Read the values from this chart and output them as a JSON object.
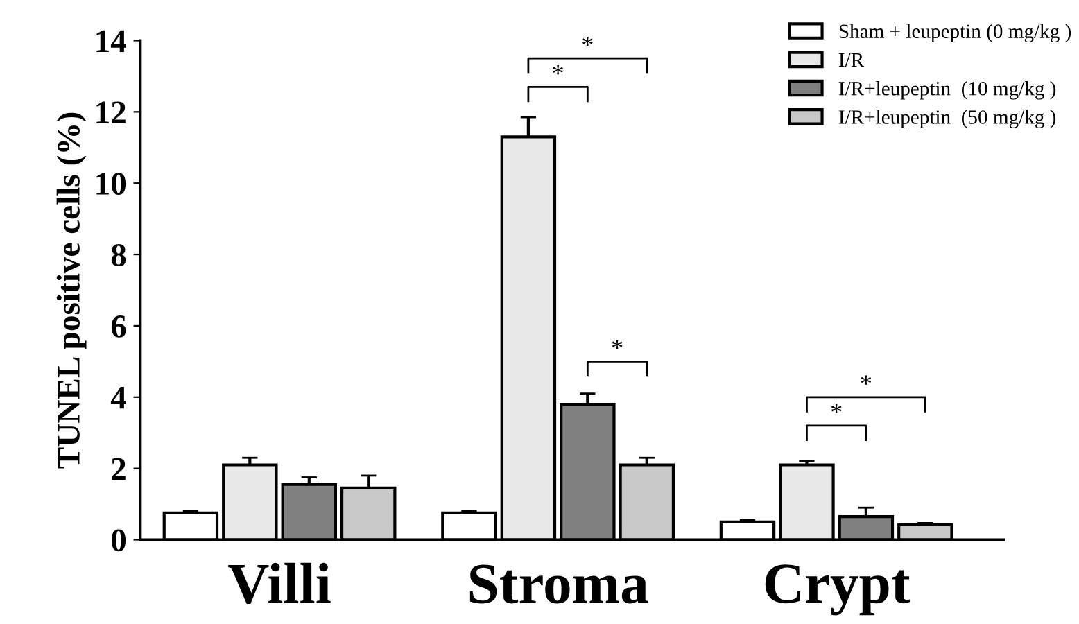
{
  "chart_data": {
    "type": "bar",
    "ylabel": "TUNEL positive cells (%)",
    "categories": [
      "Villi",
      "Stroma",
      "Crypt"
    ],
    "series": [
      {
        "name": "Sham + leupeptin (0 mg/kg )",
        "color": "#ffffff",
        "values": [
          0.75,
          0.75,
          0.5
        ],
        "errors": [
          0.05,
          0.05,
          0.05
        ]
      },
      {
        "name": "I/R",
        "color": "#e8e8e8",
        "values": [
          2.1,
          11.3,
          2.1
        ],
        "errors": [
          0.2,
          0.55,
          0.1
        ]
      },
      {
        "name": "I/R+leupeptin  (10 mg/kg )",
        "color": "#808080",
        "values": [
          1.55,
          3.8,
          0.65
        ],
        "errors": [
          0.2,
          0.3,
          0.25
        ]
      },
      {
        "name": "I/R+leupeptin  (50 mg/kg )",
        "color": "#c8c8c8",
        "values": [
          1.45,
          2.1,
          0.42
        ],
        "errors": [
          0.35,
          0.2,
          0.05
        ]
      }
    ],
    "ylim": [
      0,
      14
    ],
    "yticks": [
      0,
      2,
      4,
      6,
      8,
      10,
      12,
      14
    ],
    "grid": false,
    "legend": "top right",
    "annotations": [
      "*",
      "*",
      "*",
      "*",
      "*"
    ]
  }
}
